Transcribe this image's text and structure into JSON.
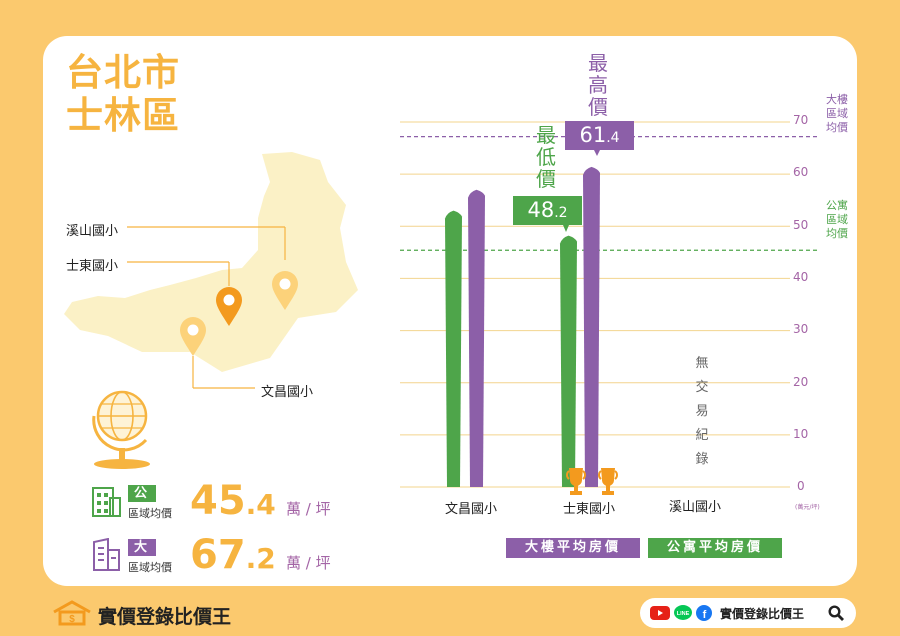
{
  "title": {
    "line1": "台北市",
    "line2": "士林區"
  },
  "map": {
    "school_labels": [
      "溪山國小",
      "士東國小",
      "文昌國小"
    ]
  },
  "stats": {
    "apartment": {
      "badge": "公寓",
      "sub": "區域均價",
      "value_int": "45",
      "value_dec": ".4",
      "unit": "萬 / 坪"
    },
    "building": {
      "badge": "大樓",
      "sub": "區域均價",
      "value_int": "67",
      "value_dec": ".2",
      "unit": "萬 / 坪"
    }
  },
  "chart_data": {
    "type": "bar",
    "categories": [
      "文昌國小",
      "士東國小",
      "溪山國小"
    ],
    "series": [
      {
        "name": "大樓平均房價",
        "values": [
          57.0,
          61.4,
          null
        ],
        "color": "#8c5fa8"
      },
      {
        "name": "公寓平均房價",
        "values": [
          53.0,
          48.2,
          null
        ],
        "color": "#4ea54a"
      }
    ],
    "ylim": [
      0,
      70
    ],
    "yticks": [
      "0",
      "10",
      "20",
      "30",
      "40",
      "50",
      "60",
      "70"
    ],
    "y_unit": "(萬元/坪)",
    "reference_lines": [
      {
        "label": "大樓區域均價",
        "value": 67.2,
        "color": "#8c5fa8"
      },
      {
        "label": "公寓區域均價",
        "value": 45.4,
        "color": "#4ea54a"
      }
    ],
    "callouts": {
      "max": {
        "label": "最高價",
        "int": "61",
        "dec": ".4"
      },
      "min": {
        "label": "最低價",
        "int": "48",
        "dec": ".2"
      }
    },
    "no_data_text": "無交易紀錄",
    "legend": [
      "大樓平均房價",
      "公寓平均房價"
    ]
  },
  "brand": {
    "name": "實價登錄比價王"
  },
  "social": {
    "name": "實價登錄比價王"
  }
}
